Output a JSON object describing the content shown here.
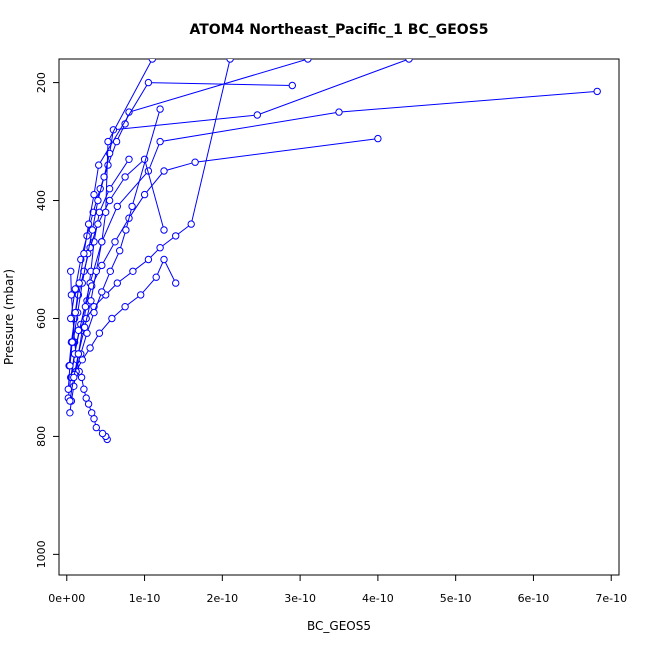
{
  "chart_data": {
    "type": "line",
    "title": "ATOM4 Northeast_Pacific_1 BC_GEOS5",
    "xlabel": "BC_GEOS5",
    "ylabel": "Pressure (mbar)",
    "xlim": [
      -1e-11,
      7.1e-10
    ],
    "ylim": [
      1035,
      160
    ],
    "y_reversed": true,
    "grid": false,
    "legend": "none",
    "x_ticks": [
      0,
      1e-10,
      2e-10,
      3e-10,
      4e-10,
      5e-10,
      6e-10,
      7e-10
    ],
    "x_tick_labels": [
      "0e+00",
      "1e-10",
      "2e-10",
      "3e-10",
      "4e-10",
      "5e-10",
      "6e-10",
      "7e-10"
    ],
    "y_ticks": [
      200,
      400,
      600,
      800,
      1000
    ],
    "y_tick_labels": [
      "200",
      "400",
      "600",
      "800",
      "1000"
    ],
    "color": "#0000ff",
    "marker": "open-circle",
    "series": [
      {
        "x": [
          5.2e-11,
          5e-11,
          4.6e-11,
          3.8e-11,
          3.5e-11,
          3.2e-11,
          2.8e-11,
          2.5e-11,
          2.2e-11,
          1.9e-11,
          1.6e-11,
          1.3e-11,
          1e-11,
          8e-12,
          6e-12,
          5e-12
        ],
        "y": [
          805,
          800,
          795,
          785,
          770,
          760,
          745,
          735,
          720,
          700,
          690,
          670,
          640,
          600,
          560,
          520
        ]
      },
      {
        "x": [
          4e-12,
          6e-12,
          9e-12,
          1.2e-11,
          1.5e-11,
          2e-11,
          2.6e-11,
          3.1e-11,
          3.5e-11,
          4.2e-11,
          5.5e-11,
          8e-11
        ],
        "y": [
          760,
          740,
          715,
          690,
          660,
          620,
          570,
          520,
          470,
          420,
          380,
          330
        ]
      },
      {
        "x": [
          2e-12,
          5e-12,
          1e-11,
          1.8e-11,
          3e-11,
          4.5e-11,
          6.5e-11,
          1.05e-10,
          1.2e-10,
          3.5e-10,
          6.82e-10
        ],
        "y": [
          735,
          700,
          660,
          610,
          540,
          470,
          410,
          350,
          300,
          250,
          215
        ]
      },
      {
        "x": [
          6e-12,
          1e-11,
          1.6e-11,
          2.4e-11,
          3.2e-11,
          4.5e-11,
          6.2e-11,
          8e-11,
          1e-10,
          1.25e-10,
          1.65e-10,
          4e-10
        ],
        "y": [
          700,
          660,
          620,
          580,
          545,
          510,
          470,
          430,
          390,
          350,
          335,
          295
        ]
      },
      {
        "x": [
          1.2e-11,
          2e-11,
          3e-11,
          4.2e-11,
          5.8e-11,
          7.5e-11,
          9.5e-11,
          1.15e-10,
          1.25e-10,
          1.4e-10
        ],
        "y": [
          690,
          670,
          650,
          625,
          600,
          580,
          560,
          530,
          500,
          540
        ]
      },
      {
        "x": [
          3e-12,
          6e-12,
          1e-11,
          1.5e-11,
          2.2e-11,
          3e-11,
          4e-11,
          5.5e-11,
          7.5e-11,
          1e-10,
          1.25e-10
        ],
        "y": [
          680,
          640,
          600,
          560,
          520,
          480,
          440,
          400,
          360,
          330,
          450
        ]
      },
      {
        "x": [
          1.5e-11,
          2.5e-11,
          3.5e-11,
          5e-11,
          6.5e-11,
          8.5e-11,
          1.05e-10,
          1.2e-10,
          1.4e-10,
          1.6e-10,
          2.1e-10
        ],
        "y": [
          620,
          600,
          580,
          560,
          540,
          520,
          500,
          480,
          460,
          440,
          160
        ]
      },
      {
        "x": [
          5e-12,
          1.1e-11,
          1.8e-11,
          2.6e-11,
          3.4e-11,
          4.3e-11,
          5.3e-11,
          6.4e-11,
          7.5e-11,
          8e-11,
          3.1e-10
        ],
        "y": [
          600,
          550,
          500,
          460,
          420,
          380,
          340,
          300,
          270,
          250,
          160
        ]
      },
      {
        "x": [
          8e-12,
          1.4e-11,
          2e-11,
          2.7e-11,
          3.3e-11,
          4e-11,
          4.8e-11,
          5.5e-11,
          6e-11,
          2.45e-10,
          4.4e-10
        ],
        "y": [
          640,
          590,
          540,
          490,
          450,
          400,
          360,
          320,
          280,
          255,
          160
        ]
      },
      {
        "x": [
          2e-12,
          4e-12,
          7e-12,
          1.1e-11,
          1.6e-11,
          2.2e-11,
          2.8e-11,
          3.5e-11,
          4.1e-11,
          1.05e-10,
          2.9e-10
        ],
        "y": [
          720,
          680,
          640,
          590,
          540,
          490,
          440,
          390,
          340,
          200,
          205
        ]
      },
      {
        "x": [
          1e-11,
          1.8e-11,
          2.6e-11,
          3.5e-11,
          4.5e-11,
          5.6e-11,
          6.8e-11,
          7.6e-11,
          8.4e-11,
          1.2e-10
        ],
        "y": [
          695,
          660,
          625,
          590,
          555,
          520,
          485,
          450,
          410,
          245
        ]
      },
      {
        "x": [
          4e-12,
          9e-12,
          1.5e-11,
          2.3e-11,
          3.1e-11,
          3.8e-11,
          4.5e-11,
          5e-11,
          5.3e-11,
          1.1e-10
        ],
        "y": [
          740,
          700,
          660,
          615,
          570,
          520,
          470,
          420,
          300,
          160
        ]
      }
    ]
  }
}
